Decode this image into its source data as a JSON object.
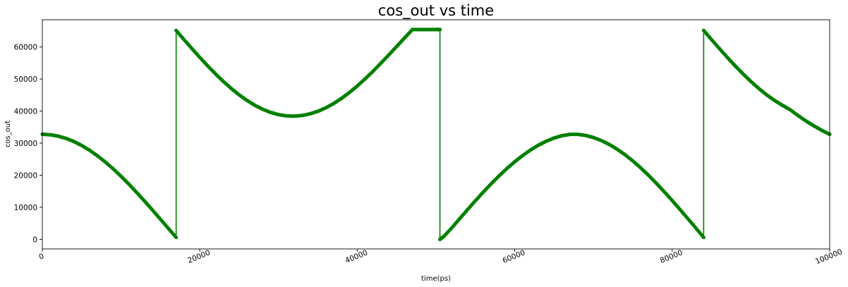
{
  "chart_data": {
    "type": "line",
    "title": "cos_out vs time",
    "xlabel": "time(ps)",
    "ylabel": "cos_out",
    "xlim": [
      0,
      100000
    ],
    "ylim": [
      -3000,
      68500
    ],
    "xticks": [
      0,
      20000,
      40000,
      60000,
      80000,
      100000
    ],
    "yticks": [
      0,
      10000,
      20000,
      30000,
      40000,
      50000,
      60000
    ],
    "grid": false,
    "legend": "none",
    "series": [
      {
        "color": "#008000",
        "marker": "circle",
        "segments": [
          {
            "x": [
              0,
              1000,
              2000,
              3000,
              4000,
              5000,
              6000,
              7000,
              8000,
              9000,
              10000,
              11000,
              12000,
              13000,
              14000,
              15000,
              16000,
              17000
            ],
            "y": [
              32768,
              32625,
              32199,
              31494,
              30518,
              29279,
              27790,
              26066,
              24124,
              21982,
              19663,
              17190,
              14588,
              11882,
              9101,
              6272,
              3424,
              586
            ]
          },
          {
            "x": [
              17000,
              18000,
              19000,
              20000,
              21000,
              22000,
              23000,
              24000,
              25000,
              26000,
              27000,
              28000,
              29000,
              30000,
              31000,
              32000,
              33000,
              34000,
              35000,
              36000,
              37000,
              38000,
              39000,
              40000,
              41000,
              42000,
              43000,
              44000,
              45000,
              46000,
              47000,
              48000,
              49000,
              50000,
              50500
            ],
            "y": [
              65150,
              62304,
              59496,
              56756,
              54114,
              51598,
              49236,
              47054,
              45075,
              43321,
              41812,
              40565,
              39594,
              38909,
              38519,
              38428,
              38637,
              39143,
              39941,
              41020,
              42367,
              43967,
              45800,
              47841,
              50064,
              52441,
              54938,
              57522,
              60158,
              62810,
              65441,
              65441,
              65441,
              65441,
              65441
            ]
          },
          {
            "x": [
              50500,
              51000,
              52000,
              53000,
              54000,
              55000,
              56000,
              57000,
              58000,
              59000,
              60000,
              61000,
              62000,
              63000,
              64000,
              65000,
              66000,
              67000,
              68000,
              69000,
              70000,
              71000,
              72000,
              73000,
              74000,
              75000,
              76000,
              77000,
              78000,
              79000,
              80000,
              81000,
              82000,
              83000,
              84000
            ],
            "y": [
              0,
              900,
              3560,
              6410,
              9240,
              12020,
              14720,
              17310,
              19770,
              22070,
              24200,
              26130,
              27860,
              29360,
              30610,
              31610,
              32330,
              32740,
              32760,
              32410,
              31760,
              30820,
              29610,
              28130,
              26410,
              24460,
              22300,
              19960,
              17460,
              14830,
              12100,
              9280,
              6420,
              3540,
              586
            ]
          },
          {
            "x": [
              84000,
              85000,
              86000,
              87000,
              88000,
              89000,
              90000,
              91000,
              92000,
              93000,
              94000,
              95000,
              96000,
              97000,
              98000,
              99000,
              100000
            ],
            "y": [
              65150,
              62304,
              59496,
              56756,
              54114,
              51598,
              49236,
              47054,
              45075,
              43321,
              41812,
              40400,
              38600,
              36900,
              35400,
              34000,
              32768
            ]
          }
        ]
      }
    ]
  }
}
